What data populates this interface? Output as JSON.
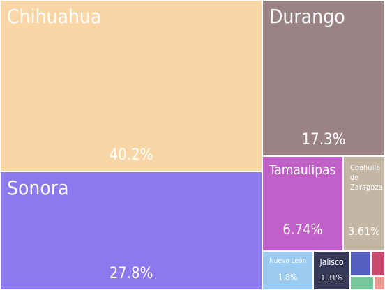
{
  "chart_data": {
    "type": "treemap",
    "title": "",
    "items": [
      {
        "id": "chihuahua",
        "name": "Chihuahua",
        "value": 40.2,
        "label": "40.2%",
        "color": "#f9d6a6"
      },
      {
        "id": "sonora",
        "name": "Sonora",
        "value": 27.8,
        "label": "27.8%",
        "color": "#8b7aee"
      },
      {
        "id": "durango",
        "name": "Durango",
        "value": 17.3,
        "label": "17.3%",
        "color": "#9a8387"
      },
      {
        "id": "tamaulipas",
        "name": "Tamaulipas",
        "value": 6.74,
        "label": "6.74%",
        "color": "#c060c8"
      },
      {
        "id": "coahuila",
        "name": "Coahuila de Zaragoza",
        "value": 3.61,
        "label": "3.61%",
        "color": "#c3b6a5"
      },
      {
        "id": "nuevo-leon",
        "name": "Nuevo León",
        "value": 1.8,
        "label": "1.8%",
        "color": "#9bcbf0"
      },
      {
        "id": "jalisco",
        "name": "Jalisco",
        "value": 1.31,
        "label": "1.31%",
        "color": "#363a56"
      },
      {
        "id": "other-blue",
        "name": "",
        "value": 0.5,
        "label": "",
        "color": "#5760c0"
      },
      {
        "id": "other-pink",
        "name": "",
        "value": 0.45,
        "label": "",
        "color": "#c84a70"
      },
      {
        "id": "other-green",
        "name": "",
        "value": 0.2,
        "label": "",
        "color": "#78c69c"
      },
      {
        "id": "other-salmon",
        "name": "",
        "value": 0.1,
        "label": "",
        "color": "#e89a90"
      }
    ]
  }
}
